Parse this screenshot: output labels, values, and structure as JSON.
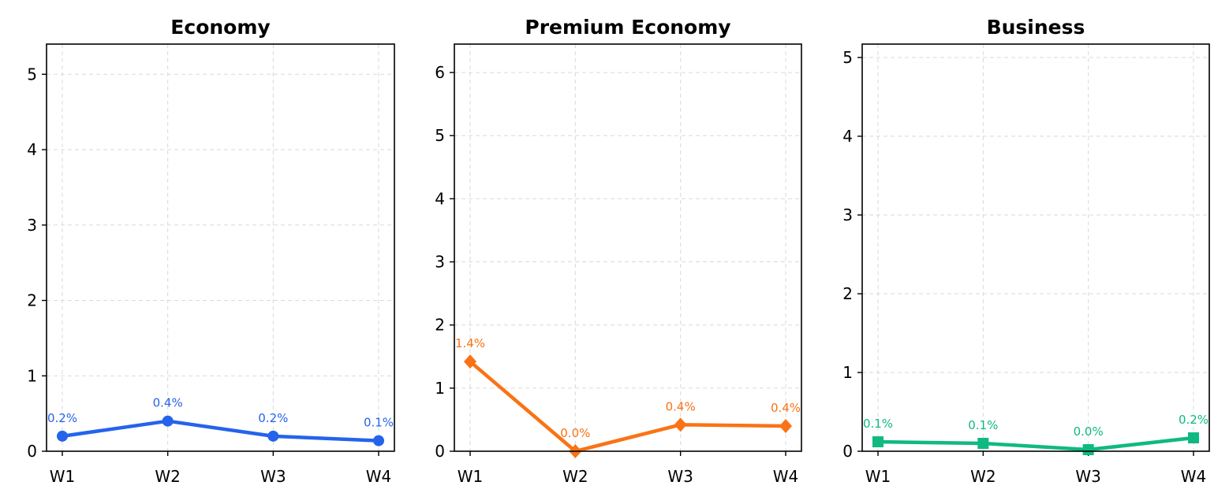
{
  "chart_data": [
    {
      "type": "line",
      "title": "Economy",
      "categories": [
        "W1",
        "W2",
        "W3",
        "W4"
      ],
      "values": [
        0.2,
        0.4,
        0.2,
        0.14
      ],
      "data_labels": [
        "0.2%",
        "0.4%",
        "0.2%",
        "0.1%"
      ],
      "ylim": [
        0,
        5.4
      ],
      "yticks": [
        0,
        1,
        2,
        3,
        4,
        5
      ],
      "color": "#2563eb",
      "marker": "circle",
      "grid": true
    },
    {
      "type": "line",
      "title": "Premium Economy",
      "categories": [
        "W1",
        "W2",
        "W3",
        "W4"
      ],
      "values": [
        1.42,
        0.0,
        0.42,
        0.4
      ],
      "data_labels": [
        "1.4%",
        "0.0%",
        "0.4%",
        "0.4%"
      ],
      "ylim": [
        0,
        6.45
      ],
      "yticks": [
        0,
        1,
        2,
        3,
        4,
        5,
        6
      ],
      "color": "#f97316",
      "marker": "diamond",
      "grid": true
    },
    {
      "type": "line",
      "title": "Business",
      "categories": [
        "W1",
        "W2",
        "W3",
        "W4"
      ],
      "values": [
        0.12,
        0.1,
        0.02,
        0.17
      ],
      "data_labels": [
        "0.1%",
        "0.1%",
        "0.0%",
        "0.2%"
      ],
      "ylim": [
        0,
        5.17
      ],
      "yticks": [
        0,
        1,
        2,
        3,
        4,
        5
      ],
      "color": "#10b981",
      "marker": "square",
      "grid": true
    }
  ]
}
